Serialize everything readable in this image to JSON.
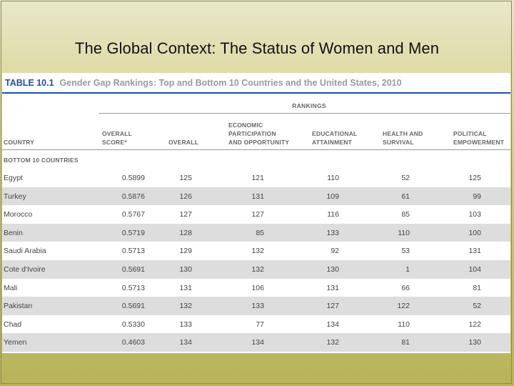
{
  "slide": {
    "title": "The Global Context: The Status of Women and Men"
  },
  "table": {
    "number": "TABLE 10.1",
    "caption": "Gender Gap Rankings: Top and Bottom 10 Countries and the United States, 2010",
    "rankings_label": "RANKINGS",
    "columns": {
      "country": "COUNTRY",
      "overall_score": "OVERALL\nSCORE*",
      "overall": "OVERALL",
      "economic": "ECONOMIC\nPARTICIPATION\nAND OPPORTUNITY",
      "educational": "EDUCATIONAL\nATTAINMENT",
      "health": "HEALTH AND\nSURVIVAL",
      "political": "POLITICAL\nEMPOWERMENT"
    },
    "section_label": "BOTTOM 10 COUNTRIES",
    "rows": [
      {
        "country": "Egypt",
        "score": "0.5899",
        "overall": "125",
        "economic": "121",
        "educational": "110",
        "health": "52",
        "political": "125"
      },
      {
        "country": "Turkey",
        "score": "0.5876",
        "overall": "126",
        "economic": "131",
        "educational": "109",
        "health": "61",
        "political": "99"
      },
      {
        "country": "Morocco",
        "score": "0.5767",
        "overall": "127",
        "economic": "127",
        "educational": "116",
        "health": "85",
        "political": "103"
      },
      {
        "country": "Benin",
        "score": "0.5719",
        "overall": "128",
        "economic": "85",
        "educational": "133",
        "health": "110",
        "political": "100"
      },
      {
        "country": "Saudi Arabia",
        "score": "0.5713",
        "overall": "129",
        "economic": "132",
        "educational": "92",
        "health": "53",
        "political": "131"
      },
      {
        "country": "Cote d'Ivoire",
        "score": "0.5691",
        "overall": "130",
        "economic": "132",
        "educational": "130",
        "health": "1",
        "political": "104"
      },
      {
        "country": "Mali",
        "score": "0.5713",
        "overall": "131",
        "economic": "106",
        "educational": "131",
        "health": "66",
        "political": "81"
      },
      {
        "country": "Pakistan",
        "score": "0.5691",
        "overall": "132",
        "economic": "133",
        "educational": "127",
        "health": "122",
        "political": "52"
      },
      {
        "country": "Chad",
        "score": "0.5330",
        "overall": "133",
        "economic": "77",
        "educational": "134",
        "health": "110",
        "political": "122"
      },
      {
        "country": "Yemen",
        "score": "0.4603",
        "overall": "134",
        "economic": "134",
        "educational": "132",
        "health": "81",
        "political": "130"
      }
    ]
  }
}
